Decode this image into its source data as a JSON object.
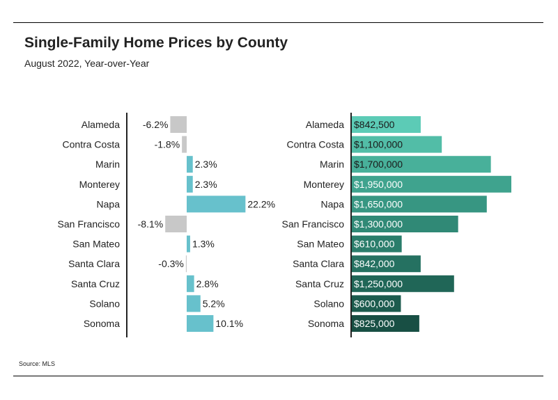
{
  "header": {
    "title": "Single-Family Home Prices by County",
    "subtitle": "August 2022, Year-over-Year"
  },
  "footer": {
    "source": "Source: MLS"
  },
  "colors": {
    "negative": "#c8c8c8",
    "positive": "#67c1cc",
    "price_palette": [
      "#5ccbb6",
      "#52bda7",
      "#48b09a",
      "#3fa38e",
      "#379682",
      "#308976",
      "#2a7d6b",
      "#257161",
      "#206657",
      "#1c5b4e",
      "#184f44"
    ]
  },
  "chart_data": [
    {
      "type": "bar",
      "orientation": "horizontal",
      "categories": [
        "Alameda",
        "Contra Costa",
        "Marin",
        "Monterey",
        "Napa",
        "San Francisco",
        "San Mateo",
        "Santa Clara",
        "Santa Cruz",
        "Solano",
        "Sonoma"
      ],
      "values": [
        -6.2,
        -1.8,
        2.3,
        2.3,
        22.2,
        -8.1,
        1.3,
        -0.3,
        2.8,
        5.2,
        10.1
      ],
      "labels": [
        "-6.2%",
        "-1.8%",
        "2.3%",
        "2.3%",
        "22.2%",
        "-8.1%",
        "1.3%",
        "-0.3%",
        "2.8%",
        "5.2%",
        "10.1%"
      ],
      "unit": "%",
      "grid": false,
      "legend": "none"
    },
    {
      "type": "bar",
      "orientation": "horizontal",
      "categories": [
        "Alameda",
        "Contra Costa",
        "Marin",
        "Monterey",
        "Napa",
        "San Francisco",
        "San Mateo",
        "Santa Clara",
        "Santa Cruz",
        "Solano",
        "Sonoma"
      ],
      "values": [
        842500,
        1100000,
        1700000,
        1950000,
        1650000,
        1300000,
        610000,
        842000,
        1250000,
        600000,
        825000
      ],
      "labels": [
        "$842,500",
        "$1,100,000",
        "$1,700,000",
        "$1,950,000",
        "$1,650,000",
        "$1,300,000",
        "$610,000",
        "$842,000",
        "$1,250,000",
        "$600,000",
        "$825,000"
      ],
      "unit": "$",
      "grid": false,
      "legend": "none"
    }
  ]
}
